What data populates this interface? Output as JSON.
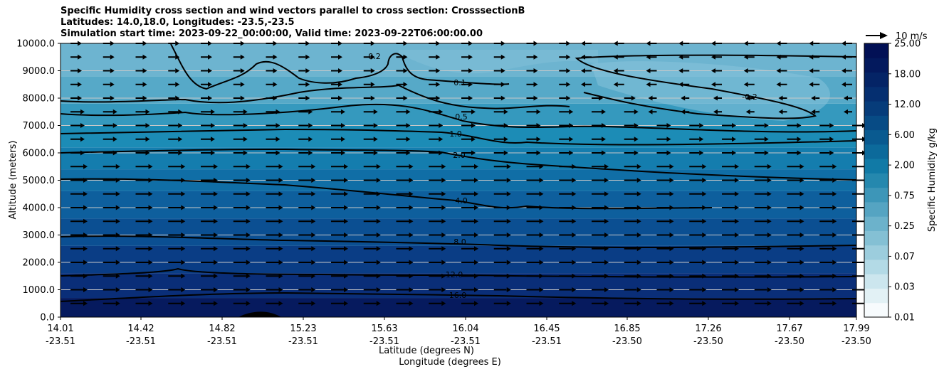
{
  "chart_data": {
    "type": "contour",
    "title_lines": [
      "Specific Humidity cross section and wind vectors parallel to cross section: CrosssectionB",
      "Latitudes: 14.0,18.0, Longitudes: -23.5,-23.5",
      "Simulation start time: 2023-09-22_00:00:00, Valid time: 2023-09-22T06:00:00.00"
    ],
    "ylabel": "Altitude (meters)",
    "xlabel_lat": "Latitude (degrees N)",
    "xlabel_lon": "Longitude (degrees E)",
    "ylim": [
      0,
      10000
    ],
    "yticks": [
      "0.0",
      "1000.0",
      "2000.0",
      "3000.0",
      "4000.0",
      "5000.0",
      "6000.0",
      "7000.0",
      "8000.0",
      "9000.0",
      "10000.0"
    ],
    "xticks": [
      {
        "lat": "14.01",
        "lon": "-23.51"
      },
      {
        "lat": "14.42",
        "lon": "-23.51"
      },
      {
        "lat": "14.82",
        "lon": "-23.51"
      },
      {
        "lat": "15.23",
        "lon": "-23.51"
      },
      {
        "lat": "15.63",
        "lon": "-23.51"
      },
      {
        "lat": "16.04",
        "lon": "-23.51"
      },
      {
        "lat": "16.45",
        "lon": "-23.51"
      },
      {
        "lat": "16.85",
        "lon": "-23.50"
      },
      {
        "lat": "17.26",
        "lon": "-23.50"
      },
      {
        "lat": "17.67",
        "lon": "-23.50"
      },
      {
        "lat": "17.99",
        "lon": "-23.50"
      }
    ],
    "colorbar": {
      "label": "Specific Humidity g/kg",
      "ticks": [
        "0.01",
        "0.03",
        "0.07",
        "0.25",
        "0.75",
        "2.00",
        "6.00",
        "12.00",
        "18.00",
        "25.00"
      ]
    },
    "quiver_key": "10 m/s",
    "contour_labels": [
      "0.2",
      "0.1",
      "-0.2",
      "0.5",
      "1.0",
      "2.0",
      "4.0",
      "8.0",
      "12.0",
      "16.0"
    ],
    "grid": true
  }
}
